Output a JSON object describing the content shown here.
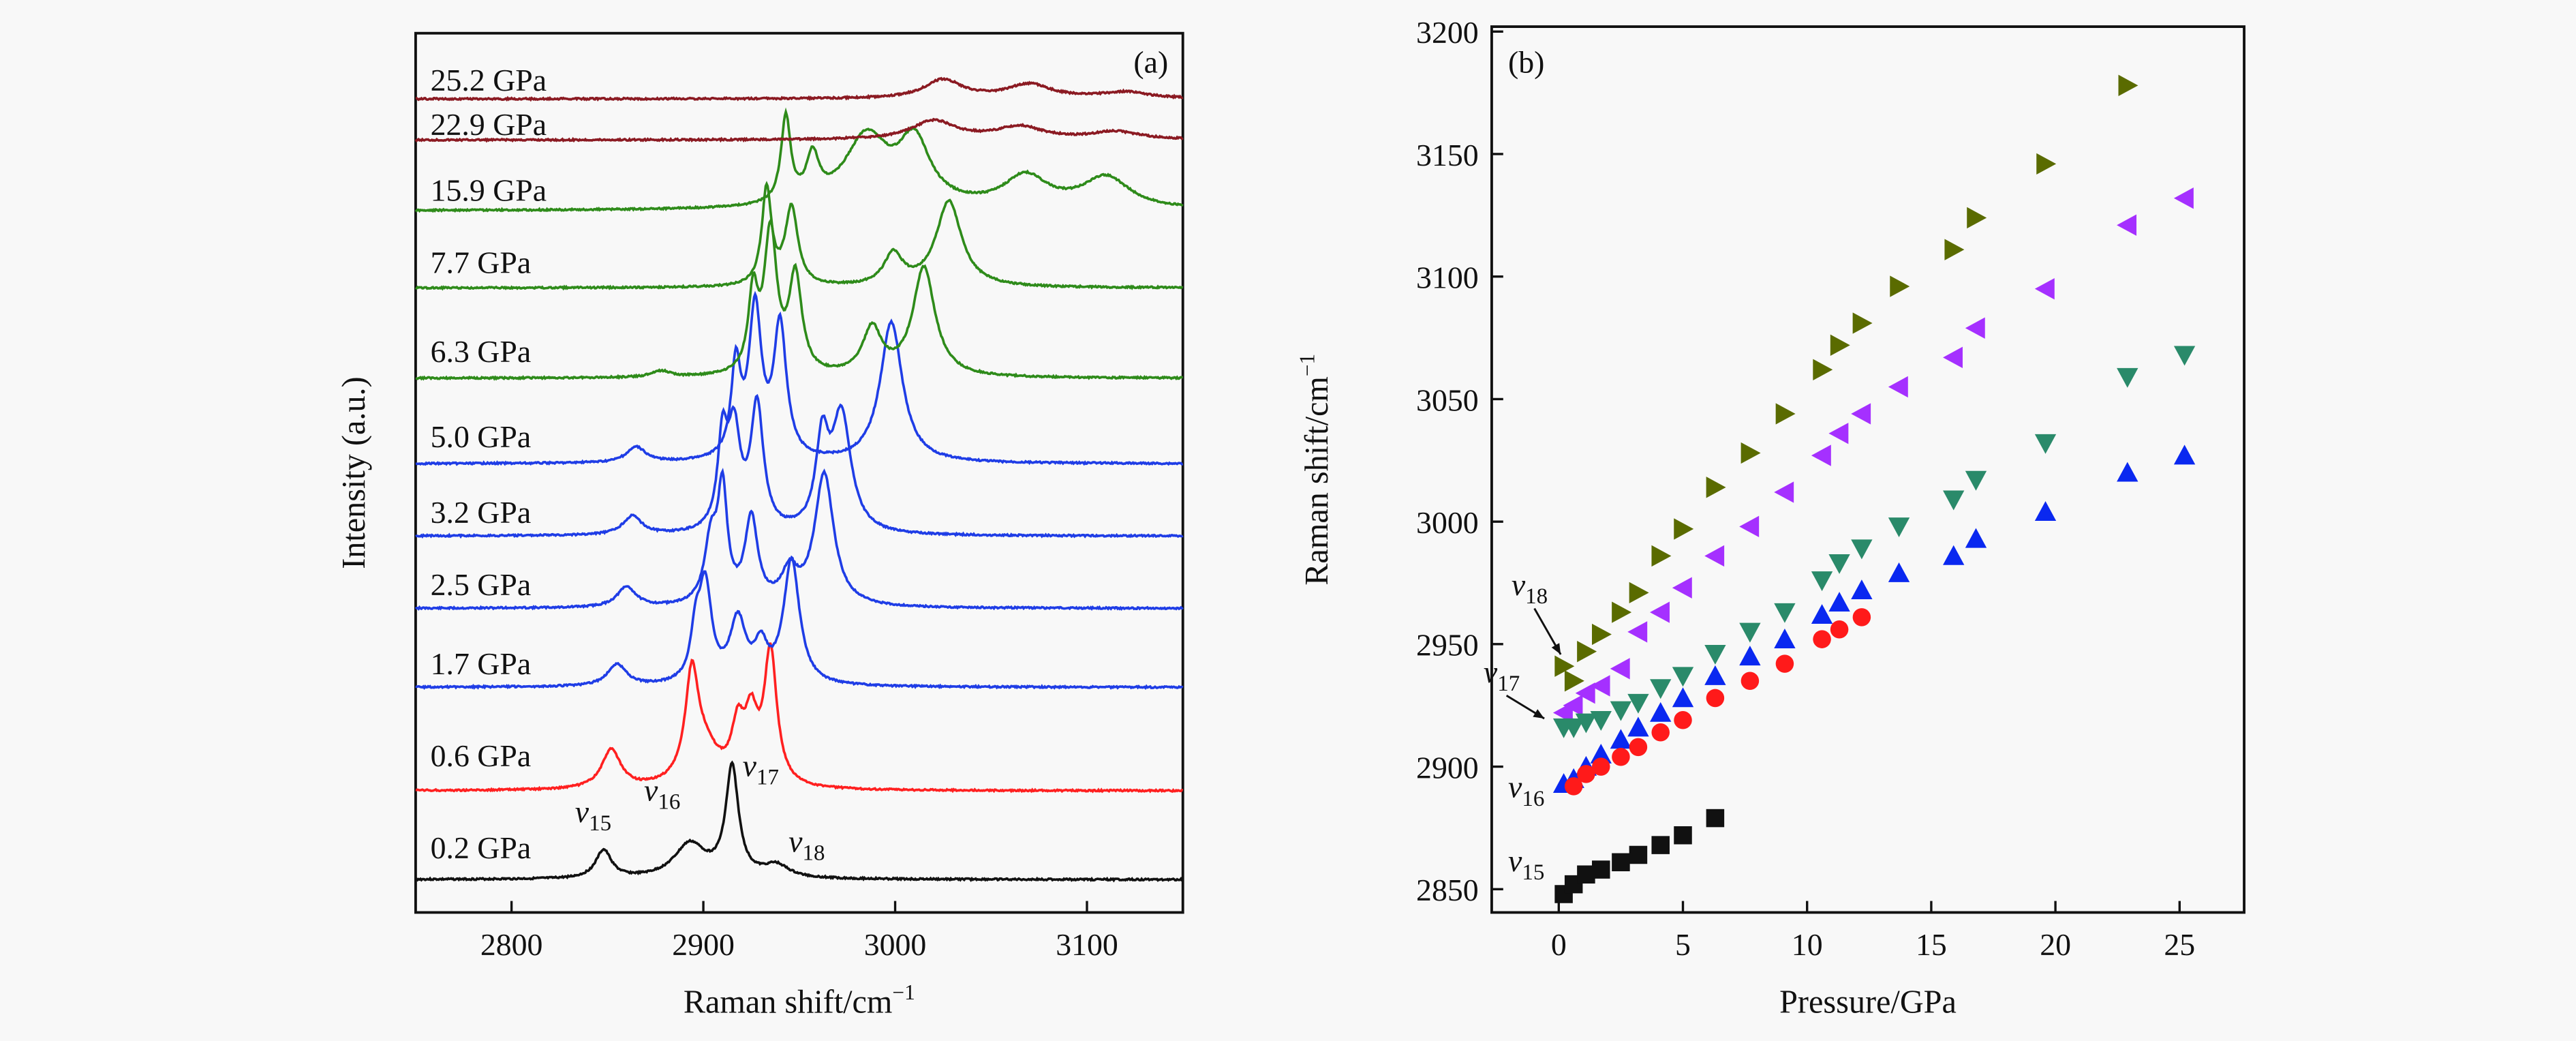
{
  "chart_data": [
    {
      "type": "line",
      "panel_label": "(a)",
      "xlabel": "Raman shift/cm",
      "xlabel_sup": "−1",
      "ylabel": "Intensity (a.u.)",
      "xlim": [
        2750,
        3150
      ],
      "xticks": [
        "2800",
        "2900",
        "3000",
        "3100"
      ],
      "xtick_values": [
        2800,
        2900,
        3000,
        3100
      ],
      "series": [
        {
          "name": "0.2 GPa",
          "color": "#111111",
          "peaks": [
            [
              2848,
              18,
              5
            ],
            [
              2893,
              22,
              10
            ],
            [
              2915,
              70,
              4
            ],
            [
              2938,
              8,
              8
            ]
          ]
        },
        {
          "name": "0.6 GPa",
          "color": "#ff2020",
          "peaks": [
            [
              2852,
              25,
              6
            ],
            [
              2894,
              62,
              4
            ],
            [
              2900,
              25,
              10
            ],
            [
              2918,
              33,
              4
            ],
            [
              2925,
              38,
              4
            ],
            [
              2935,
              85,
              4
            ]
          ]
        },
        {
          "name": "1.7 GPa",
          "color": "#1f3de6",
          "peaks": [
            [
              2855,
              14,
              6
            ],
            [
              2896,
              28,
              3
            ],
            [
              2901,
              62,
              4
            ],
            [
              2918,
              40,
              5
            ],
            [
              2930,
              22,
              4
            ],
            [
              2946,
              80,
              5
            ]
          ]
        },
        {
          "name": "2.5 GPa",
          "color": "#1f3de6",
          "peaks": [
            [
              2860,
              13,
              6
            ],
            [
              2904,
              40,
              4
            ],
            [
              2910,
              70,
              3
            ],
            [
              2925,
              55,
              4
            ],
            [
              2945,
              20,
              5
            ],
            [
              2963,
              85,
              6
            ]
          ]
        },
        {
          "name": "3.2 GPa",
          "color": "#1f3de6",
          "peaks": [
            [
              2863,
              12,
              6
            ],
            [
              2910,
              55,
              3
            ],
            [
              2916,
              62,
              4
            ],
            [
              2928,
              80,
              4
            ],
            [
              2962,
              55,
              4
            ],
            [
              2972,
              75,
              6
            ]
          ]
        },
        {
          "name": "5.0 GPa",
          "color": "#1f3de6",
          "peaks": [
            [
              2865,
              10,
              6
            ],
            [
              2917,
              58,
              3
            ],
            [
              2927,
              95,
              4
            ],
            [
              2940,
              85,
              4
            ],
            [
              2998,
              90,
              7
            ]
          ]
        },
        {
          "name": "6.3 GPa",
          "color": "#2e8b1a",
          "peaks": [
            [
              2878,
              4,
              6
            ],
            [
              2926,
              50,
              3
            ],
            [
              2935,
              90,
              4
            ],
            [
              2948,
              62,
              4
            ],
            [
              2988,
              30,
              6
            ],
            [
              3015,
              70,
              7
            ]
          ]
        },
        {
          "name": "7.7 GPa",
          "color": "#2e8b1a",
          "peaks": [
            [
              2933,
              62,
              3
            ],
            [
              2946,
              50,
              4
            ],
            [
              2999,
              20,
              6
            ],
            [
              3028,
              55,
              8
            ]
          ]
        },
        {
          "name": "15.9 GPa",
          "color": "#2e8b1a",
          "peaks": [
            [
              2943,
              55,
              3
            ],
            [
              2957,
              28,
              4
            ],
            [
              2985,
              45,
              14
            ],
            [
              3010,
              40,
              10
            ],
            [
              3068,
              20,
              14
            ],
            [
              3110,
              20,
              15
            ]
          ]
        },
        {
          "name": "22.9 GPa",
          "color": "#8b1a22",
          "peaks": [
            [
              3020,
              12,
              14
            ],
            [
              3065,
              8,
              15
            ],
            [
              3115,
              5,
              15
            ]
          ]
        },
        {
          "name": "25.2 GPa",
          "color": "#8b1a22",
          "peaks": [
            [
              3025,
              12,
              12
            ],
            [
              3070,
              9,
              14
            ],
            [
              3120,
              4,
              15
            ]
          ]
        }
      ],
      "annotations": [
        {
          "symbol": "v",
          "sub": "15",
          "x": 2846
        },
        {
          "symbol": "v",
          "sub": "16",
          "x": 2882
        },
        {
          "symbol": "v",
          "sub": "17",
          "x": 2922
        },
        {
          "symbol": "v",
          "sub": "18",
          "x": 2945
        }
      ]
    },
    {
      "type": "scatter",
      "panel_label": "(b)",
      "xlabel": "Pressure/GPa",
      "ylabel": "Raman shift/cm",
      "ylabel_sup": "−1",
      "xlim": [
        -2.7,
        27.6
      ],
      "ylim": [
        2840.5,
        3202
      ],
      "xticks": [
        "0",
        "5",
        "10",
        "15",
        "20",
        "25"
      ],
      "xtick_values": [
        0,
        5,
        10,
        15,
        20,
        25
      ],
      "yticks": [
        "2850",
        "2900",
        "2950",
        "3000",
        "3050",
        "3100",
        "3150",
        "3200"
      ],
      "ytick_values": [
        2850,
        2900,
        2950,
        3000,
        3050,
        3100,
        3150,
        3200
      ],
      "series": [
        {
          "name": "v18",
          "marker": "triangle-right",
          "color": "#5a6b00",
          "x": [
            0.2,
            0.6,
            1.1,
            1.7,
            2.5,
            3.2,
            4.1,
            5.0,
            6.3,
            7.7,
            9.1,
            10.6,
            11.3,
            12.2,
            13.7,
            15.9,
            16.8,
            19.6,
            22.9
          ],
          "y": [
            2941,
            2935,
            2947,
            2954,
            2963,
            2971,
            2986,
            2997,
            3014,
            3028,
            3044,
            3062,
            3072,
            3081,
            3096,
            3111,
            3124,
            3146,
            3178
          ]
        },
        {
          "name": "v17b",
          "marker": "triangle-left",
          "color": "#a530ff",
          "x": [
            0.2,
            0.6,
            1.1,
            1.7,
            2.5,
            3.2,
            4.1,
            5.0,
            6.3,
            7.7,
            9.1,
            10.6,
            11.3,
            12.2,
            13.7,
            15.9,
            16.8,
            19.6,
            22.9,
            25.2
          ],
          "y": [
            2922,
            2925,
            2930,
            2933,
            2940,
            2955,
            2963,
            2973,
            2986,
            2998,
            3012,
            3027,
            3036,
            3044,
            3055,
            3067,
            3079,
            3095,
            3121,
            3132
          ]
        },
        {
          "name": "v17",
          "marker": "triangle-down",
          "color": "#2a8a6a",
          "x": [
            0.2,
            0.6,
            1.1,
            1.7,
            2.5,
            3.2,
            4.1,
            5.0,
            6.3,
            7.7,
            9.1,
            10.6,
            11.3,
            12.2,
            13.7,
            15.9,
            16.8,
            19.6,
            22.9,
            25.2
          ],
          "y": [
            2916,
            2916,
            2918,
            2919,
            2923,
            2926,
            2932,
            2937,
            2946,
            2955,
            2963,
            2976,
            2983,
            2989,
            2998,
            3009,
            3017,
            3032,
            3059,
            3068
          ]
        },
        {
          "name": "v16",
          "marker": "triangle-up",
          "color": "#0a28f0",
          "x": [
            0.2,
            0.6,
            1.1,
            1.7,
            2.5,
            3.2,
            4.1,
            5.0,
            6.3,
            7.7,
            9.1,
            10.6,
            11.3,
            12.2,
            13.7,
            15.9,
            16.8,
            19.6,
            22.9,
            25.2
          ],
          "y": [
            2893,
            2895,
            2900,
            2905,
            2911,
            2916,
            2922,
            2928,
            2937,
            2945,
            2952,
            2962,
            2967,
            2972,
            2979,
            2986,
            2993,
            3004,
            3020,
            3027
          ]
        },
        {
          "name": "v16b",
          "marker": "circle",
          "color": "#ff1a1a",
          "x": [
            0.6,
            1.1,
            1.7,
            2.5,
            3.2,
            4.1,
            5.0,
            6.3,
            7.7,
            9.1,
            10.6,
            11.3,
            12.2
          ],
          "y": [
            2892,
            2897,
            2900,
            2904,
            2908,
            2914,
            2919,
            2928,
            2935,
            2942,
            2952,
            2956,
            2961
          ]
        },
        {
          "name": "v15",
          "marker": "square",
          "color": "#111111",
          "x": [
            0.2,
            0.6,
            1.1,
            1.7,
            2.5,
            3.2,
            4.1,
            5.0,
            6.3
          ],
          "y": [
            2848,
            2852,
            2856,
            2858,
            2861,
            2864,
            2868,
            2872,
            2879
          ]
        }
      ],
      "annotations": [
        {
          "symbol": "v",
          "sub": "18",
          "arrow": true
        },
        {
          "symbol": "v",
          "sub": "17",
          "arrow": true
        },
        {
          "symbol": "v",
          "sub": "16",
          "arrow": false
        },
        {
          "symbol": "v",
          "sub": "15",
          "arrow": false
        }
      ]
    }
  ]
}
